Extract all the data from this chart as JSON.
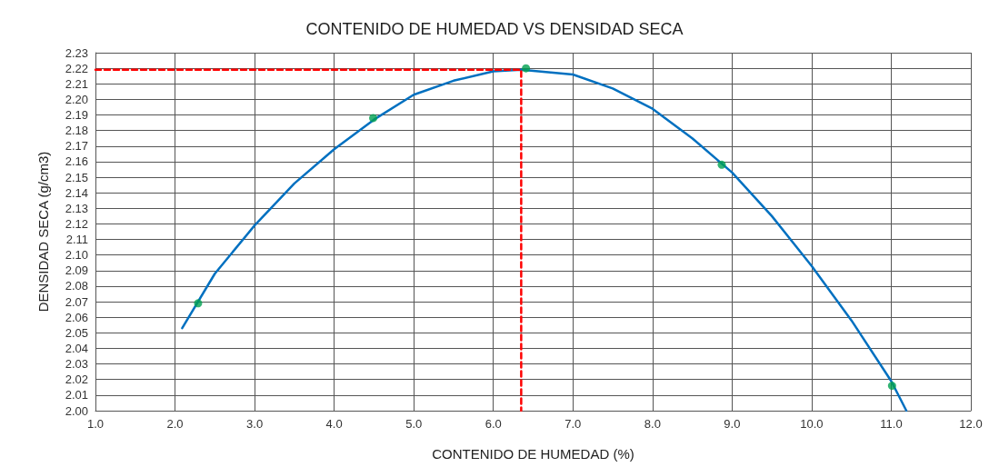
{
  "chart_data": {
    "type": "scatter",
    "title": "CONTENIDO DE HUMEDAD VS DENSIDAD SECA",
    "xlabel": "CONTENIDO DE HUMEDAD (%)",
    "ylabel": "DENSIDAD SECA (g/cm3)",
    "xlim": [
      1.0,
      12.0
    ],
    "xticks": [
      {
        "value": 1,
        "label": "1.0"
      },
      {
        "value": 2,
        "label": "2.0"
      },
      {
        "value": 3,
        "label": "3.0"
      },
      {
        "value": 4,
        "label": "4.0"
      },
      {
        "value": 5,
        "label": "5.0"
      },
      {
        "value": 6,
        "label": "6.0"
      },
      {
        "value": 7,
        "label": "7.0"
      },
      {
        "value": 8,
        "label": "8.0"
      },
      {
        "value": 9,
        "label": "9.0"
      },
      {
        "value": 10,
        "label": "10.0"
      },
      {
        "value": 11,
        "label": "11.0"
      },
      {
        "value": 12,
        "label": "12.0"
      }
    ],
    "ylim": [
      2.0,
      2.23
    ],
    "yticks": [
      {
        "value": 2,
        "label": "2.00"
      },
      {
        "value": 2.01,
        "label": "2.01"
      },
      {
        "value": 2.02,
        "label": "2.02"
      },
      {
        "value": 2.03,
        "label": "2.03"
      },
      {
        "value": 2.04,
        "label": "2.04"
      },
      {
        "value": 2.05,
        "label": "2.05"
      },
      {
        "value": 2.06,
        "label": "2.06"
      },
      {
        "value": 2.07,
        "label": "2.07"
      },
      {
        "value": 2.08,
        "label": "2.08"
      },
      {
        "value": 2.09,
        "label": "2.09"
      },
      {
        "value": 2.1,
        "label": "2.10"
      },
      {
        "value": 2.11,
        "label": "2.11"
      },
      {
        "value": 2.12,
        "label": "2.12"
      },
      {
        "value": 2.13,
        "label": "2.13"
      },
      {
        "value": 2.14,
        "label": "2.14"
      },
      {
        "value": 2.15,
        "label": "2.15"
      },
      {
        "value": 2.16,
        "label": "2.16"
      },
      {
        "value": 2.17,
        "label": "2.17"
      },
      {
        "value": 2.18,
        "label": "2.18"
      },
      {
        "value": 2.19,
        "label": "2.19"
      },
      {
        "value": 2.2,
        "label": "2.20"
      },
      {
        "value": 2.21,
        "label": "2.21"
      },
      {
        "value": 2.22,
        "label": "2.22"
      },
      {
        "value": 2.23,
        "label": "2.23"
      }
    ],
    "grid": true,
    "series": [
      {
        "type": "line",
        "color": "#0070c0",
        "marker": "none",
        "line_style": "solid",
        "x": [
          2.09,
          2.5,
          3.0,
          3.5,
          4.0,
          4.5,
          5.0,
          5.5,
          6.0,
          6.35,
          7.0,
          7.5,
          8.0,
          8.5,
          9.0,
          9.5,
          10.0,
          10.5,
          11.0,
          11.19
        ],
        "values": [
          2.053,
          2.088,
          2.119,
          2.146,
          2.168,
          2.187,
          2.203,
          2.212,
          2.218,
          2.219,
          2.216,
          2.207,
          2.194,
          2.175,
          2.153,
          2.125,
          2.093,
          2.058,
          2.019,
          2.0
        ]
      },
      {
        "color": "#00a050",
        "marker": "circle",
        "x": [
          2.29,
          4.49,
          6.41,
          8.87,
          11.01
        ],
        "values": [
          2.069,
          2.188,
          2.22,
          2.158,
          2.016
        ]
      },
      {
        "type": "line",
        "color": "#ff0000",
        "marker": "none",
        "line_style": "dashed",
        "x": [
          1.0,
          6.35,
          6.35
        ],
        "values": [
          2.219,
          2.219,
          2.0
        ]
      }
    ]
  }
}
